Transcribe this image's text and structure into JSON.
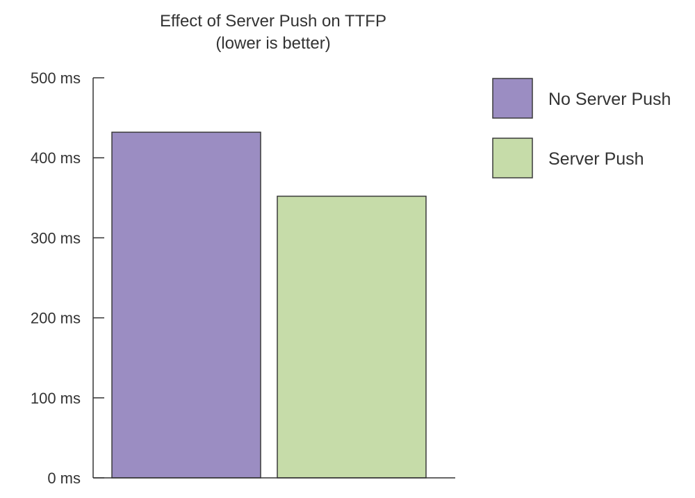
{
  "chart_data": {
    "type": "bar",
    "title": "Effect of Server Push on TTFP",
    "subtitle": "(lower is better)",
    "xlabel": "",
    "ylabel": "",
    "ylim": [
      0,
      500
    ],
    "y_ticks": [
      "0 ms",
      "100 ms",
      "200 ms",
      "300 ms",
      "400 ms",
      "500 ms"
    ],
    "y_tick_values": [
      0,
      100,
      200,
      300,
      400,
      500
    ],
    "grid": false,
    "legend_position": "right",
    "series": [
      {
        "name": "No Server Push",
        "value": 432,
        "color": "#9b8dc2"
      },
      {
        "name": "Server Push",
        "value": 352,
        "color": "#c6dca9"
      }
    ]
  }
}
